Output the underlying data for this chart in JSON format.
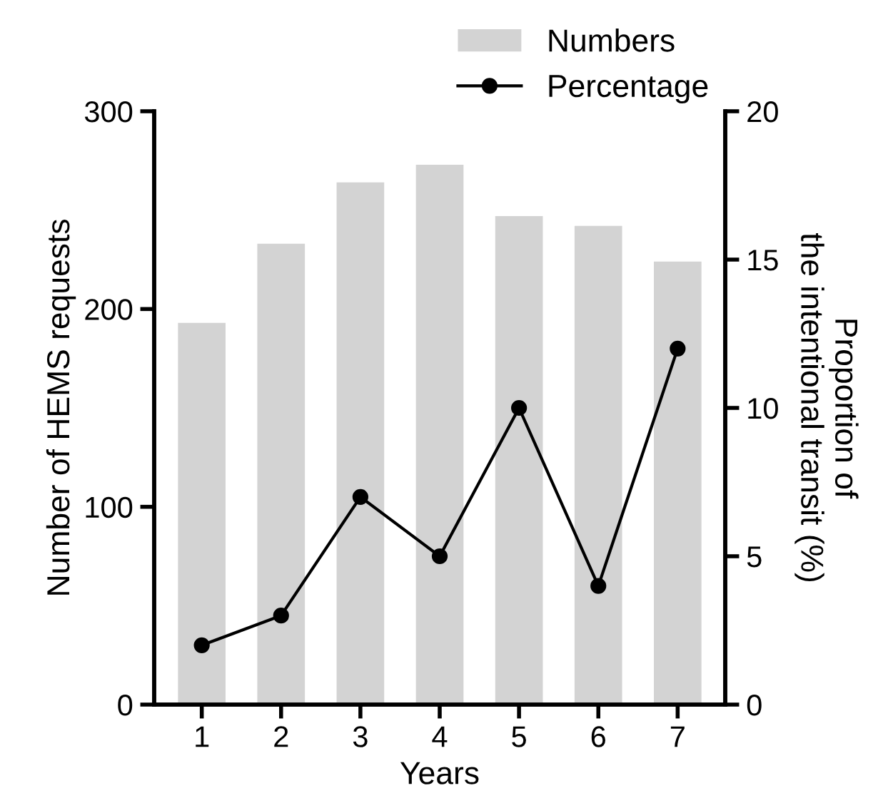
{
  "chart_data": {
    "type": "bar",
    "xlabel": "Years",
    "ylabel": "Number of HEMS requests",
    "y2label": "Proportion of\nthe intentional transit (%)",
    "categories": [
      "1",
      "2",
      "3",
      "4",
      "5",
      "6",
      "7"
    ],
    "series": [
      {
        "name": "Numbers",
        "color": "#d3d3d3",
        "values": [
          193,
          233,
          264,
          273,
          247,
          242,
          224
        ]
      },
      {
        "name": "Percentage",
        "type": "line",
        "axis": "y2",
        "color": "#000000",
        "marker": "circle",
        "values": [
          2,
          3,
          7,
          5,
          10,
          4,
          12
        ]
      }
    ],
    "ylim": [
      0,
      300
    ],
    "yticks": [
      0,
      100,
      200,
      300
    ],
    "y2lim": [
      0,
      20
    ],
    "y2ticks": [
      0,
      5,
      10,
      15,
      20
    ],
    "grid": false,
    "legend": "top right"
  }
}
